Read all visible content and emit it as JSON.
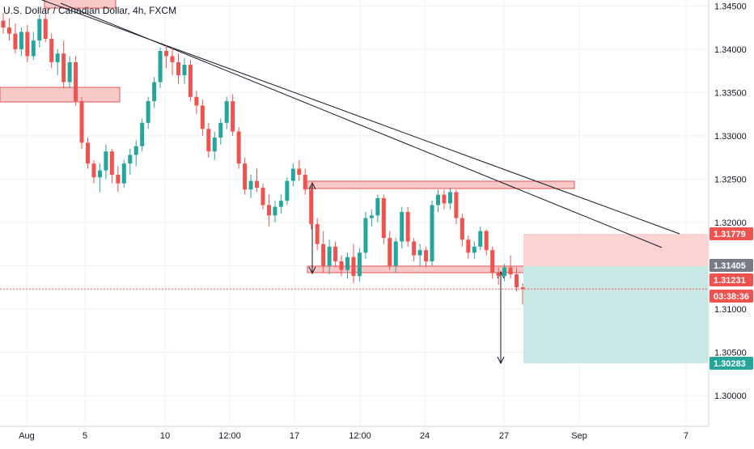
{
  "symbol": {
    "title": "U.S. Dollar / Canadian Dollar, 4h, FXCM"
  },
  "colors": {
    "up": "#26a69a",
    "down": "#ef5350",
    "zone_fill": "#f7c9c9",
    "zone_border": "#e05555",
    "stop_fill": "#fbd3d3",
    "target_fill": "#c8e8e6",
    "trendline": "#131722",
    "grid": "#eef0f3",
    "axis_text": "#131722",
    "last_price_line": "#ef5350"
  },
  "chart_data": {
    "type": "candlestick",
    "ylim": [
      1.2985,
      1.3455
    ],
    "y_ticks": [
      "1.34500",
      "1.34000",
      "1.33500",
      "1.33000",
      "1.32500",
      "1.32000",
      "1.31500",
      "1.31000",
      "1.30500",
      "1.30000"
    ],
    "x_tick_labels": [
      "Aug",
      "5",
      "10",
      "12:00",
      "17",
      "12:00",
      "24",
      "27",
      "Sep",
      "7"
    ],
    "price_labels": [
      {
        "id": "stop",
        "text": "1.31779",
        "value": 1.31779,
        "bg": "#ef5350"
      },
      {
        "id": "entry",
        "text": "1.31405",
        "value": 1.31405,
        "bg": "#787b86"
      },
      {
        "id": "last",
        "text": "1.31231",
        "value": 1.31231,
        "bg": "#ef5350"
      },
      {
        "id": "countdown",
        "text": "03:38:36",
        "value": 1.311,
        "bg": "#ef5350"
      },
      {
        "id": "target",
        "text": "1.30283",
        "value": 1.30283,
        "bg": "#26a69a"
      }
    ],
    "last_price": 1.31231,
    "candles": [
      [
        1.3433,
        1.3442,
        1.3418,
        1.3425
      ],
      [
        1.3425,
        1.3436,
        1.341,
        1.3418
      ],
      [
        1.3418,
        1.343,
        1.3395,
        1.34
      ],
      [
        1.34,
        1.3425,
        1.3392,
        1.342
      ],
      [
        1.342,
        1.3428,
        1.3385,
        1.3392
      ],
      [
        1.3392,
        1.342,
        1.3388,
        1.341
      ],
      [
        1.341,
        1.344,
        1.3402,
        1.3435
      ],
      [
        1.3435,
        1.3448,
        1.3408,
        1.3412
      ],
      [
        1.3412,
        1.3418,
        1.3378,
        1.3385
      ],
      [
        1.3385,
        1.34,
        1.337,
        1.3395
      ],
      [
        1.3395,
        1.341,
        1.3355,
        1.3362
      ],
      [
        1.3362,
        1.3392,
        1.3355,
        1.3385
      ],
      [
        1.3385,
        1.3392,
        1.3335,
        1.334
      ],
      [
        1.334,
        1.3345,
        1.3285,
        1.3292
      ],
      [
        1.3292,
        1.3298,
        1.3262,
        1.3268
      ],
      [
        1.3268,
        1.3272,
        1.3245,
        1.3252
      ],
      [
        1.3252,
        1.3268,
        1.3235,
        1.326
      ],
      [
        1.326,
        1.329,
        1.325,
        1.3282
      ],
      [
        1.3282,
        1.3285,
        1.3245,
        1.3255
      ],
      [
        1.3255,
        1.3265,
        1.3235,
        1.3245
      ],
      [
        1.3245,
        1.3272,
        1.324,
        1.3268
      ],
      [
        1.3268,
        1.3285,
        1.3255,
        1.3278
      ],
      [
        1.3278,
        1.3295,
        1.3265,
        1.3288
      ],
      [
        1.3288,
        1.332,
        1.3282,
        1.3315
      ],
      [
        1.3315,
        1.3345,
        1.3308,
        1.334
      ],
      [
        1.334,
        1.3368,
        1.3332,
        1.3362
      ],
      [
        1.3362,
        1.3402,
        1.3355,
        1.3398
      ],
      [
        1.3398,
        1.3405,
        1.3378,
        1.3392
      ],
      [
        1.3392,
        1.3402,
        1.337,
        1.3385
      ],
      [
        1.3385,
        1.3395,
        1.336,
        1.337
      ],
      [
        1.337,
        1.339,
        1.336,
        1.3382
      ],
      [
        1.3382,
        1.3388,
        1.334,
        1.3345
      ],
      [
        1.3345,
        1.3352,
        1.3325,
        1.3335
      ],
      [
        1.3335,
        1.3342,
        1.33,
        1.3308
      ],
      [
        1.3308,
        1.3315,
        1.3275,
        1.3282
      ],
      [
        1.3282,
        1.3305,
        1.3272,
        1.3298
      ],
      [
        1.3298,
        1.332,
        1.329,
        1.3315
      ],
      [
        1.3315,
        1.3345,
        1.3308,
        1.334
      ],
      [
        1.334,
        1.3348,
        1.33,
        1.3305
      ],
      [
        1.3305,
        1.331,
        1.3262,
        1.3268
      ],
      [
        1.3268,
        1.3275,
        1.3232,
        1.3238
      ],
      [
        1.3238,
        1.3255,
        1.3228,
        1.3248
      ],
      [
        1.3248,
        1.3262,
        1.3235,
        1.324
      ],
      [
        1.324,
        1.3245,
        1.3215,
        1.322
      ],
      [
        1.322,
        1.3232,
        1.3195,
        1.3208
      ],
      [
        1.3208,
        1.3225,
        1.32,
        1.3218
      ],
      [
        1.3218,
        1.3232,
        1.321,
        1.3225
      ],
      [
        1.3225,
        1.3252,
        1.322,
        1.3248
      ],
      [
        1.3248,
        1.3268,
        1.3242,
        1.3262
      ],
      [
        1.3262,
        1.3272,
        1.3248,
        1.3255
      ],
      [
        1.3255,
        1.3262,
        1.3232,
        1.3238
      ],
      [
        1.3238,
        1.3245,
        1.3192,
        1.3198
      ],
      [
        1.3198,
        1.3205,
        1.3168,
        1.3175
      ],
      [
        1.3175,
        1.319,
        1.3142,
        1.315
      ],
      [
        1.315,
        1.318,
        1.314,
        1.3172
      ],
      [
        1.3172,
        1.3178,
        1.3148,
        1.3155
      ],
      [
        1.3155,
        1.3162,
        1.3138,
        1.3145
      ],
      [
        1.3145,
        1.3165,
        1.3135,
        1.316
      ],
      [
        1.316,
        1.3175,
        1.313,
        1.3138
      ],
      [
        1.3138,
        1.317,
        1.3132,
        1.3165
      ],
      [
        1.3165,
        1.3212,
        1.3158,
        1.3205
      ],
      [
        1.3205,
        1.3215,
        1.3195,
        1.3208
      ],
      [
        1.3208,
        1.3232,
        1.32,
        1.3228
      ],
      [
        1.3228,
        1.3232,
        1.3175,
        1.3182
      ],
      [
        1.3182,
        1.319,
        1.3145,
        1.315
      ],
      [
        1.315,
        1.3182,
        1.3142,
        1.3178
      ],
      [
        1.3178,
        1.3218,
        1.317,
        1.3212
      ],
      [
        1.3212,
        1.3218,
        1.3172,
        1.3178
      ],
      [
        1.3178,
        1.3182,
        1.3155,
        1.3162
      ],
      [
        1.3162,
        1.3175,
        1.315,
        1.3168
      ],
      [
        1.3168,
        1.3172,
        1.3148,
        1.3155
      ],
      [
        1.3155,
        1.3225,
        1.315,
        1.322
      ],
      [
        1.322,
        1.3238,
        1.3212,
        1.3232
      ],
      [
        1.3232,
        1.3238,
        1.3215,
        1.3222
      ],
      [
        1.3222,
        1.324,
        1.3215,
        1.3235
      ],
      [
        1.3235,
        1.3238,
        1.3198,
        1.3205
      ],
      [
        1.3205,
        1.321,
        1.3172,
        1.318
      ],
      [
        1.318,
        1.3185,
        1.3158,
        1.3165
      ],
      [
        1.3165,
        1.3178,
        1.3158,
        1.3172
      ],
      [
        1.3172,
        1.3195,
        1.3168,
        1.319
      ],
      [
        1.319,
        1.3192,
        1.3162,
        1.3168
      ],
      [
        1.3168,
        1.3172,
        1.3135,
        1.3142
      ],
      [
        1.3142,
        1.3148,
        1.3128,
        1.3138
      ],
      [
        1.3138,
        1.3152,
        1.3132,
        1.3148
      ],
      [
        1.3148,
        1.3162,
        1.3135,
        1.314
      ],
      [
        1.314,
        1.3148,
        1.312,
        1.3125
      ],
      [
        1.3125,
        1.313,
        1.3105,
        1.3123
      ]
    ]
  }
}
